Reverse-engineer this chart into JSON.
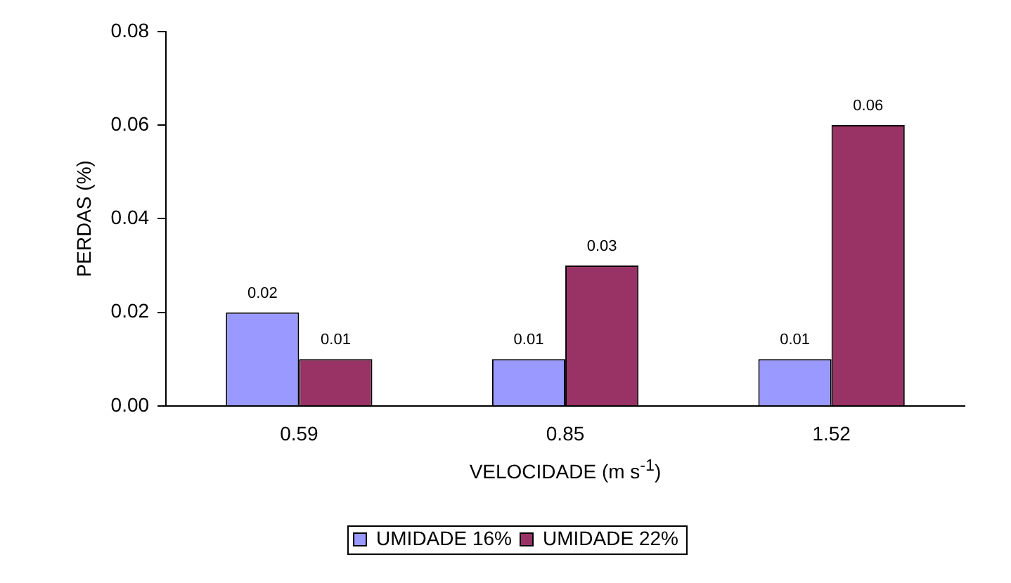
{
  "chart_data": {
    "type": "bar",
    "xlabel": "VELOCIDADE (m s$^{-1}$)",
    "ylabel": "PERDAS (%)",
    "categories": [
      "0.59",
      "0.85",
      "1.52"
    ],
    "series": [
      {
        "name": "UMIDADE 16%",
        "color": "#9999ff",
        "values": [
          0.02,
          0.01,
          0.01
        ]
      },
      {
        "name": "UMIDADE 22%",
        "color": "#993366",
        "values": [
          0.01,
          0.03,
          0.06
        ]
      }
    ],
    "ylim": [
      0,
      0.08
    ],
    "yticks": [
      {
        "value": 0,
        "label": "0.00"
      },
      0.02,
      {
        "value": 0.04,
        "label": "0.04"
      },
      0.06,
      0.08
    ],
    "data_labels": true,
    "grid": false,
    "legend": "bottom"
  }
}
